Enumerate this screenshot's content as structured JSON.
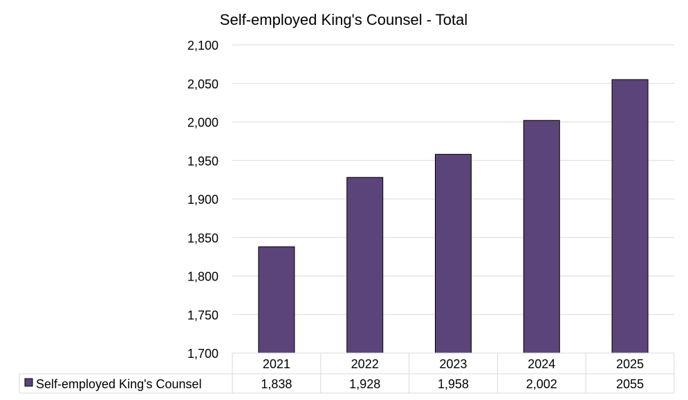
{
  "chart_data": {
    "type": "bar",
    "title": "Self-employed King's Counsel - Total",
    "categories": [
      "2021",
      "2022",
      "2023",
      "2024",
      "2025"
    ],
    "series": [
      {
        "name": "Self-employed King's Counsel",
        "values": [
          1838,
          1928,
          1958,
          2002,
          2055
        ],
        "value_labels": [
          "1,838",
          "1,928",
          "1,958",
          "2,002",
          "2055"
        ],
        "color": "#5b447a"
      }
    ],
    "ylim": [
      1700,
      2100
    ],
    "yticks": [
      1700,
      1750,
      1800,
      1850,
      1900,
      1950,
      2000,
      2050,
      2100
    ],
    "ytick_labels": [
      "1,700",
      "1,750",
      "1,800",
      "1,850",
      "1,900",
      "1,950",
      "2,000",
      "2,050",
      "2,100"
    ],
    "grid": true,
    "legend": "data-table-bottom",
    "gridline_color": "#d9d9d9"
  }
}
